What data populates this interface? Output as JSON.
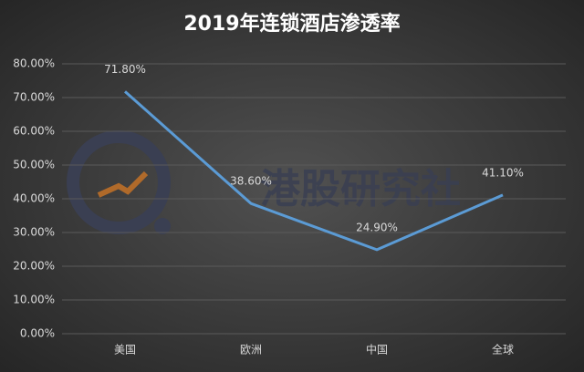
{
  "chart_data": {
    "type": "line",
    "title": "2019年连锁酒店渗透率",
    "categories": [
      "美国",
      "欧洲",
      "中国",
      "全球"
    ],
    "values": [
      71.8,
      38.6,
      24.9,
      41.1
    ],
    "value_labels": [
      "71.80%",
      "38.60%",
      "24.90%",
      "41.10%"
    ],
    "color": "#5b9bd5",
    "ylim": [
      0,
      80
    ],
    "yticks": [
      {
        "value": 0,
        "label": "0.00%"
      },
      {
        "value": 10,
        "label": "10.00%"
      },
      {
        "value": 20,
        "label": "20.00%"
      },
      {
        "value": 30,
        "label": "30.00%"
      },
      {
        "value": 40,
        "label": "40.00%"
      },
      {
        "value": 50,
        "label": "50.00%"
      },
      {
        "value": 60,
        "label": "60.00%"
      },
      {
        "value": 70,
        "label": "70.00%"
      },
      {
        "value": 80,
        "label": "80.00%"
      }
    ],
    "grid": true,
    "watermark": "港股研究社"
  }
}
